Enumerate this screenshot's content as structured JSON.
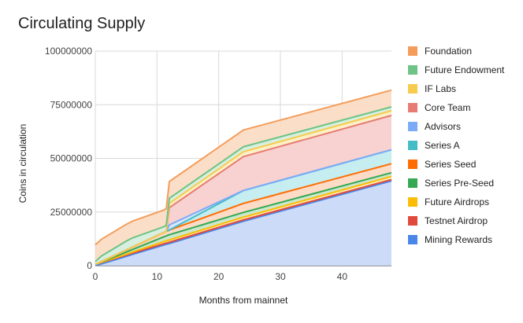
{
  "chart_data": {
    "type": "area",
    "stacked": true,
    "title": "Circulating Supply",
    "xlabel": "Months from mainnet",
    "ylabel": "Coins in circulation",
    "xlim": [
      0,
      48
    ],
    "ylim": [
      0,
      100000000
    ],
    "xticks": [
      0,
      10,
      20,
      30,
      40
    ],
    "yticks": [
      0,
      25000000,
      50000000,
      75000000,
      100000000
    ],
    "ytick_labels": [
      "0",
      "25000000",
      "50000000",
      "75000000",
      "100000000"
    ],
    "grid": true,
    "legend_position": "right",
    "x": [
      0,
      1,
      5,
      6,
      11,
      11.5,
      12,
      24,
      48
    ],
    "series": [
      {
        "name": "Mining Rewards",
        "color": "#4a86e8",
        "fill": "#c9daf8",
        "values": [
          0,
          800000,
          4300000,
          5200000,
          9500000,
          9900000,
          10300000,
          20700000,
          39500000
        ]
      },
      {
        "name": "Testnet Airdrop",
        "color": "#e04a3c",
        "fill": "#f4c7c3",
        "values": [
          600000,
          600000,
          600000,
          600000,
          600000,
          600000,
          600000,
          600000,
          600000
        ]
      },
      {
        "name": "Future Airdrops",
        "color": "#fbbc04",
        "fill": "#fce8b2",
        "values": [
          0,
          100000,
          400000,
          500000,
          1000000,
          1050000,
          1100000,
          1300000,
          1500000
        ]
      },
      {
        "name": "Series Pre-Seed",
        "color": "#34a853",
        "fill": "#c8e6c9",
        "values": [
          0,
          200000,
          1000000,
          1200000,
          2200000,
          2300000,
          2400000,
          2200000,
          1700000
        ]
      },
      {
        "name": "Series Seed",
        "color": "#ff6d01",
        "fill": "#fcd9c4",
        "values": [
          0,
          200000,
          900000,
          1100000,
          2000000,
          2100000,
          2200000,
          4200000,
          4200000
        ]
      },
      {
        "name": "Series A",
        "color": "#46bdc6",
        "fill": "#c3ecef",
        "values": [
          0,
          0,
          0,
          0,
          0,
          0,
          0,
          6000000,
          6500000
        ]
      },
      {
        "name": "Advisors",
        "color": "#7baaf7",
        "fill": "#d7e4fb",
        "values": [
          0,
          0,
          0,
          0,
          0,
          0,
          2400000,
          0,
          0
        ]
      },
      {
        "name": "Core Team",
        "color": "#e67c73",
        "fill": "#f8d0cd",
        "values": [
          0,
          0,
          0,
          0,
          0,
          0,
          8000000,
          15800000,
          16000000
        ]
      },
      {
        "name": "IF Labs",
        "color": "#f7cb4d",
        "fill": "#fcefc4",
        "values": [
          0,
          0,
          0,
          0,
          0,
          0,
          2000000,
          2300000,
          2200000
        ]
      },
      {
        "name": "Future Endowment",
        "color": "#6fc386",
        "fill": "#d6eedd",
        "values": [
          1300000,
          2600000,
          4200000,
          4300000,
          2700000,
          2800000,
          2400000,
          2300000,
          1800000
        ]
      },
      {
        "name": "Foundation",
        "color": "#f49d5b",
        "fill": "#fbdcc4",
        "values": [
          7800000,
          7800000,
          7800000,
          7800000,
          7800000,
          7800000,
          7800000,
          7800000,
          7800000
        ]
      }
    ]
  }
}
